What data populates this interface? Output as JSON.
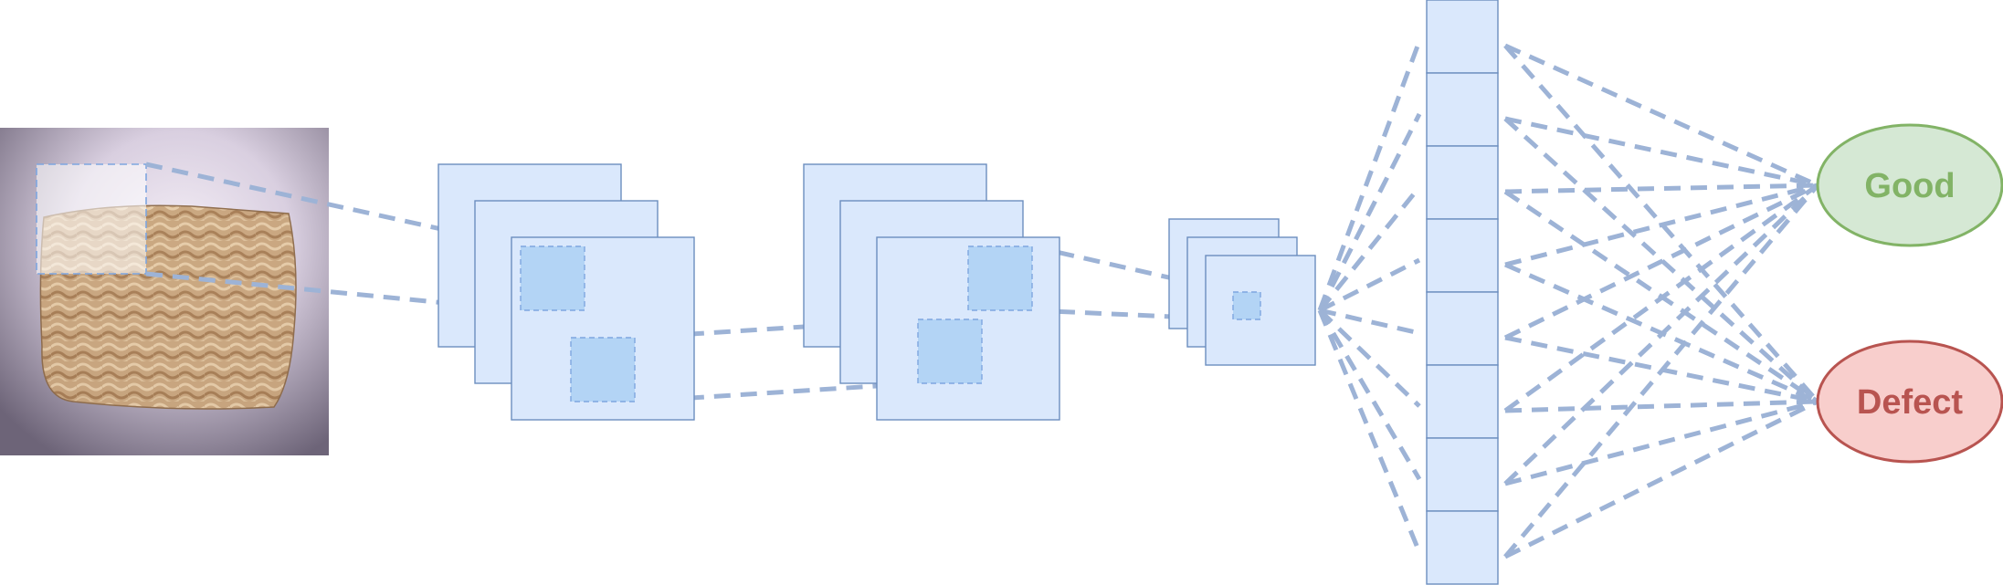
{
  "input_image": {
    "icon": "instant-noodle-block-photo"
  },
  "outputs": {
    "good": {
      "label": "Good",
      "fill": "#d5e8d4",
      "stroke": "#82b366",
      "text": "#82b366"
    },
    "defect": {
      "label": "Defect",
      "fill": "#f8cecc",
      "stroke": "#b85450",
      "text": "#b85450"
    }
  },
  "colors": {
    "feature_map_fill": "#dae8fc",
    "feature_map_stroke": "#6c8ebf",
    "patch_fill": "#b3d4f5",
    "connection": "#9db3d6"
  },
  "fully_connected_units": 8
}
